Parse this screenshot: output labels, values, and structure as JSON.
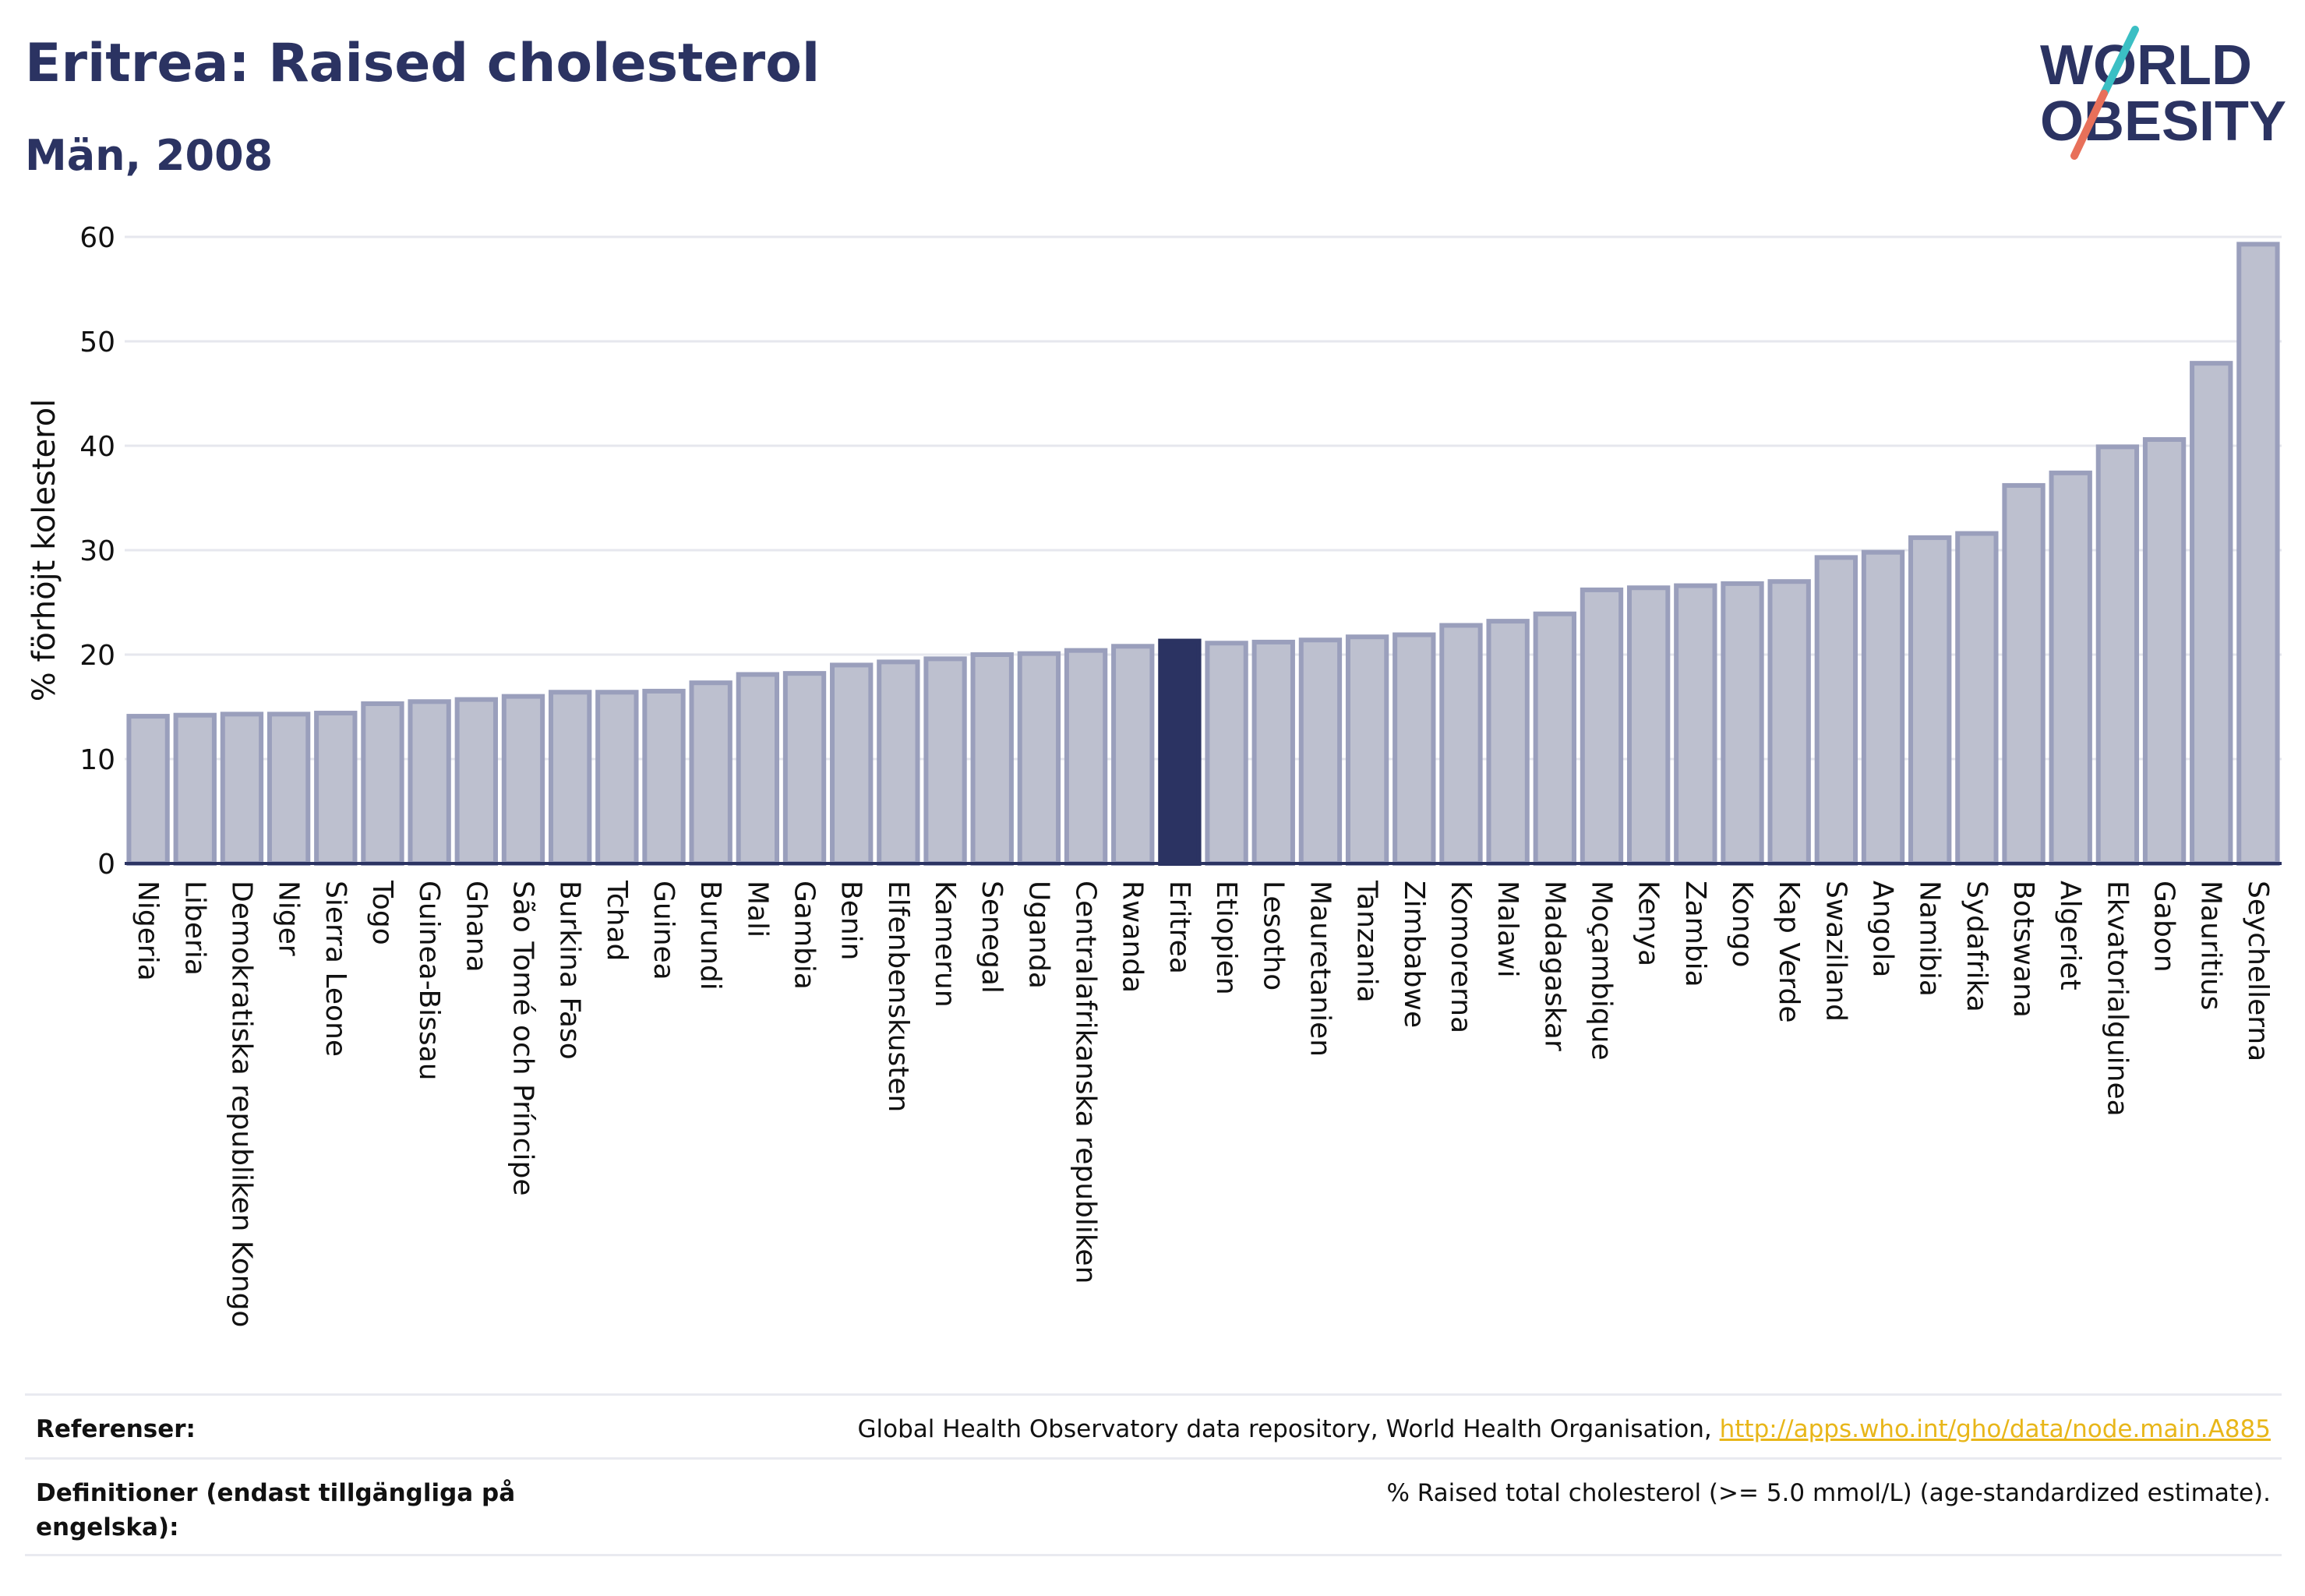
{
  "header": {
    "title": "Eritrea: Raised cholesterol",
    "subtitle": "Män, 2008"
  },
  "logo": {
    "line1": "WORLD",
    "line2": "OBESITY",
    "accent_teal": "#3bbfc4",
    "accent_red": "#e8705a"
  },
  "colors": {
    "bar_fill": "#bdc0cf",
    "bar_stroke": "#9a9fbc",
    "highlight": "#2b3362",
    "text": "#2b3362"
  },
  "chart_data": {
    "type": "bar",
    "title": "Eritrea: Raised cholesterol",
    "subtitle": "Män, 2008",
    "ylabel": "% förhöjt kolesterol",
    "xlabel": "",
    "ylim": [
      0,
      60
    ],
    "yticks": [
      0,
      10,
      20,
      30,
      40,
      50,
      60
    ],
    "grid": true,
    "highlight": "Eritrea",
    "categories": [
      "Nigeria",
      "Liberia",
      "Demokratiska republiken Kongo",
      "Niger",
      "Sierra Leone",
      "Togo",
      "Guinea-Bissau",
      "Ghana",
      "São Tomé och Príncipe",
      "Burkina Faso",
      "Tchad",
      "Guinea",
      "Burundi",
      "Mali",
      "Gambia",
      "Benin",
      "Elfenbenskusten",
      "Kamerun",
      "Senegal",
      "Uganda",
      "Centralafrikanska republiken",
      "Rwanda",
      "Eritrea",
      "Etiopien",
      "Lesotho",
      "Mauretanien",
      "Tanzania",
      "Zimbabwe",
      "Komorerna",
      "Malawi",
      "Madagaskar",
      "Moçambique",
      "Kenya",
      "Zambia",
      "Kongo",
      "Kap Verde",
      "Swaziland",
      "Angola",
      "Namibia",
      "Sydafrika",
      "Botswana",
      "Algeriet",
      "Ekvatorialguinea",
      "Gabon",
      "Mauritius",
      "Seychellerna"
    ],
    "values": [
      14.1,
      14.2,
      14.3,
      14.3,
      14.4,
      15.3,
      15.5,
      15.7,
      16.0,
      16.4,
      16.4,
      16.5,
      17.3,
      18.1,
      18.2,
      19.0,
      19.3,
      19.6,
      20.0,
      20.1,
      20.4,
      20.8,
      21.3,
      21.1,
      21.2,
      21.4,
      21.7,
      21.9,
      22.8,
      23.2,
      23.9,
      26.2,
      26.4,
      26.6,
      26.8,
      27.0,
      29.3,
      29.8,
      31.2,
      31.6,
      36.2,
      37.4,
      39.9,
      40.6,
      47.9,
      59.3
    ]
  },
  "footer": {
    "references_label": "Referenser:",
    "references_text": "Global Health Observatory data repository, World Health Organisation, ",
    "references_link": "http://apps.who.int/gho/data/node.main.A885",
    "definitions_label": "Definitioner (endast tillgängliga på engelska):",
    "definitions_text": "% Raised total cholesterol (>= 5.0 mmol/L) (age-standardized estimate)."
  }
}
